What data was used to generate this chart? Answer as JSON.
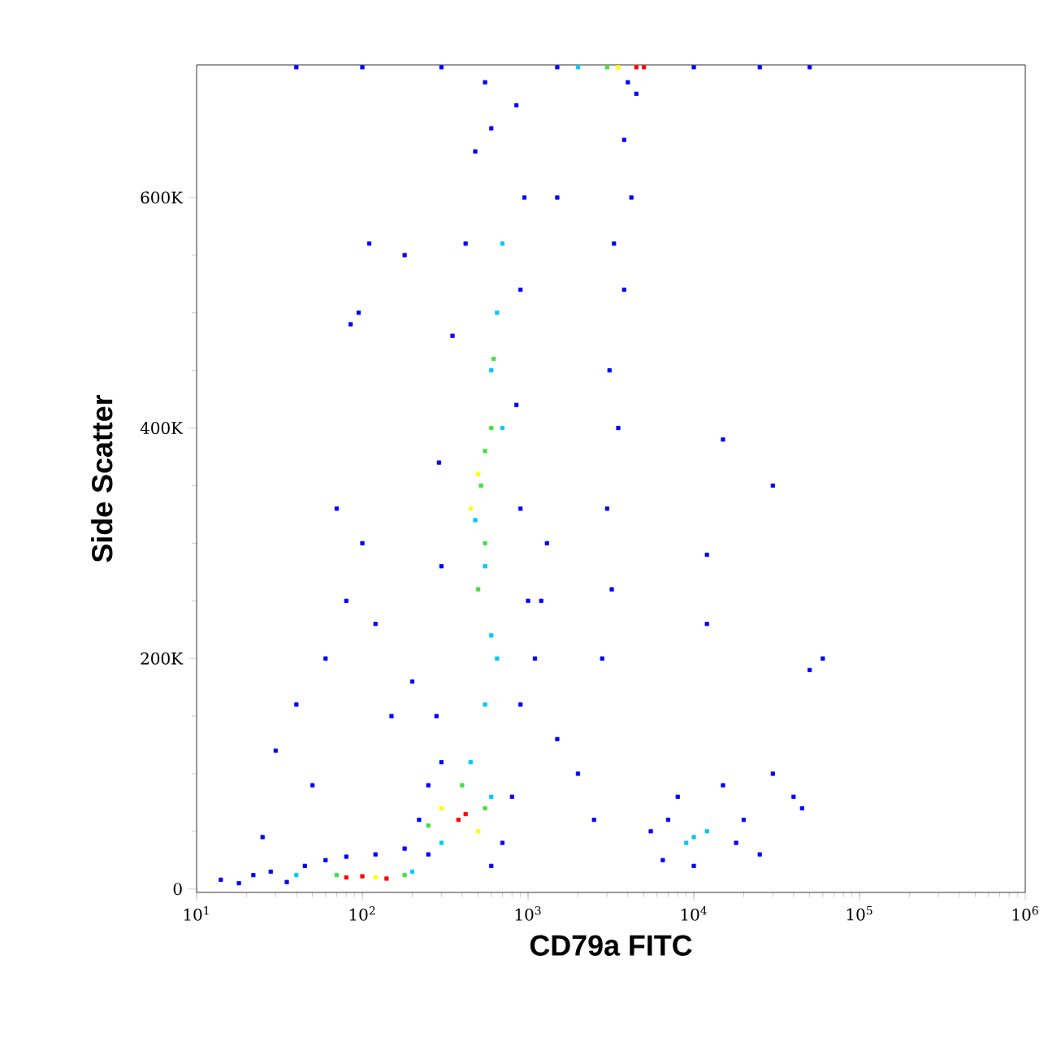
{
  "chart_data": {
    "type": "scatter",
    "xlabel": "CD79a FITC",
    "ylabel": "Side Scatter",
    "log": "x",
    "marker": "square",
    "xlim": [
      10,
      1000000
    ],
    "ylim": [
      -3000,
      715000
    ],
    "xticks": [
      {
        "value": 10,
        "label": "10$^{1}$"
      },
      {
        "value": 100,
        "label": "10$^{2}$"
      },
      {
        "value": 1000,
        "label": "10$^{3}$"
      },
      {
        "value": 10000,
        "label": "10$^{4}$"
      },
      {
        "value": 100000,
        "label": "10$^{5}$"
      },
      {
        "value": 1000000,
        "label": "10$^{6}$"
      }
    ],
    "yticks": [
      0,
      {
        "value": 200000,
        "label": "200K"
      },
      {
        "value": 400000,
        "label": "400K"
      },
      {
        "value": 600000,
        "label": "600K"
      }
    ],
    "series": [
      {
        "color": "#0000ff",
        "x": [
          14,
          18,
          22,
          28,
          35,
          45,
          60,
          80,
          120,
          180,
          25,
          30,
          40,
          60,
          80,
          100,
          120,
          50,
          150,
          70,
          95,
          85,
          110,
          200,
          180,
          250,
          220,
          250,
          700,
          800,
          600,
          300,
          280,
          900,
          1100,
          1200,
          300,
          900,
          290,
          850,
          350,
          900,
          420,
          950,
          480,
          850,
          550,
          600,
          1000,
          1300,
          2800,
          3200,
          3000,
          3500,
          3100,
          3800,
          3300,
          4200,
          3800,
          4500,
          4000,
          2000,
          2500,
          1500,
          5500,
          6500,
          8000,
          15000,
          20000,
          25000,
          30000,
          40000,
          50000,
          60000,
          10000,
          18000,
          7000,
          45000,
          30000,
          15000,
          12000,
          12000,
          1500,
          40,
          100,
          300,
          1500,
          10000,
          25000,
          50000
        ],
        "values": [
          8000,
          5000,
          12000,
          15000,
          6000,
          20000,
          25000,
          28000,
          30000,
          35000,
          45000,
          120000,
          160000,
          200000,
          250000,
          300000,
          230000,
          90000,
          150000,
          330000,
          500000,
          490000,
          560000,
          180000,
          550000,
          30000,
          60000,
          90000,
          40000,
          80000,
          20000,
          110000,
          150000,
          160000,
          200000,
          250000,
          280000,
          330000,
          370000,
          420000,
          480000,
          520000,
          560000,
          600000,
          640000,
          680000,
          700000,
          660000,
          250000,
          300000,
          200000,
          260000,
          330000,
          400000,
          450000,
          520000,
          560000,
          600000,
          650000,
          690000,
          700000,
          100000,
          60000,
          130000,
          50000,
          25000,
          80000,
          90000,
          60000,
          30000,
          100000,
          80000,
          190000,
          200000,
          20000,
          40000,
          60000,
          70000,
          350000,
          390000,
          290000,
          230000,
          600000,
          713000,
          713000,
          713000,
          713000,
          713000,
          713000,
          713000
        ]
      },
      {
        "color": "#00c8ff",
        "x": [
          40,
          200,
          450,
          550,
          600,
          650,
          550,
          480,
          700,
          650,
          700,
          600,
          10000,
          12000,
          9000,
          300,
          600,
          2000
        ],
        "values": [
          12000,
          15000,
          110000,
          160000,
          220000,
          200000,
          280000,
          320000,
          400000,
          500000,
          560000,
          450000,
          45000,
          50000,
          40000,
          40000,
          80000,
          713000
        ]
      },
      {
        "color": "#40e040",
        "x": [
          70,
          180,
          550,
          520,
          600,
          550,
          620,
          500,
          250,
          550,
          400,
          3000
        ],
        "values": [
          12000,
          12000,
          300000,
          350000,
          400000,
          380000,
          460000,
          260000,
          55000,
          70000,
          90000,
          713000
        ]
      },
      {
        "color": "#ffff00",
        "x": [
          120,
          300,
          500,
          450,
          500,
          3500
        ],
        "values": [
          10000,
          70000,
          50000,
          330000,
          360000,
          713000
        ]
      },
      {
        "color": "#ff0000",
        "x": [
          80,
          100,
          140,
          380,
          420,
          4500,
          5000
        ],
        "values": [
          10000,
          11000,
          9000,
          60000,
          65000,
          713000,
          713000
        ]
      }
    ]
  }
}
